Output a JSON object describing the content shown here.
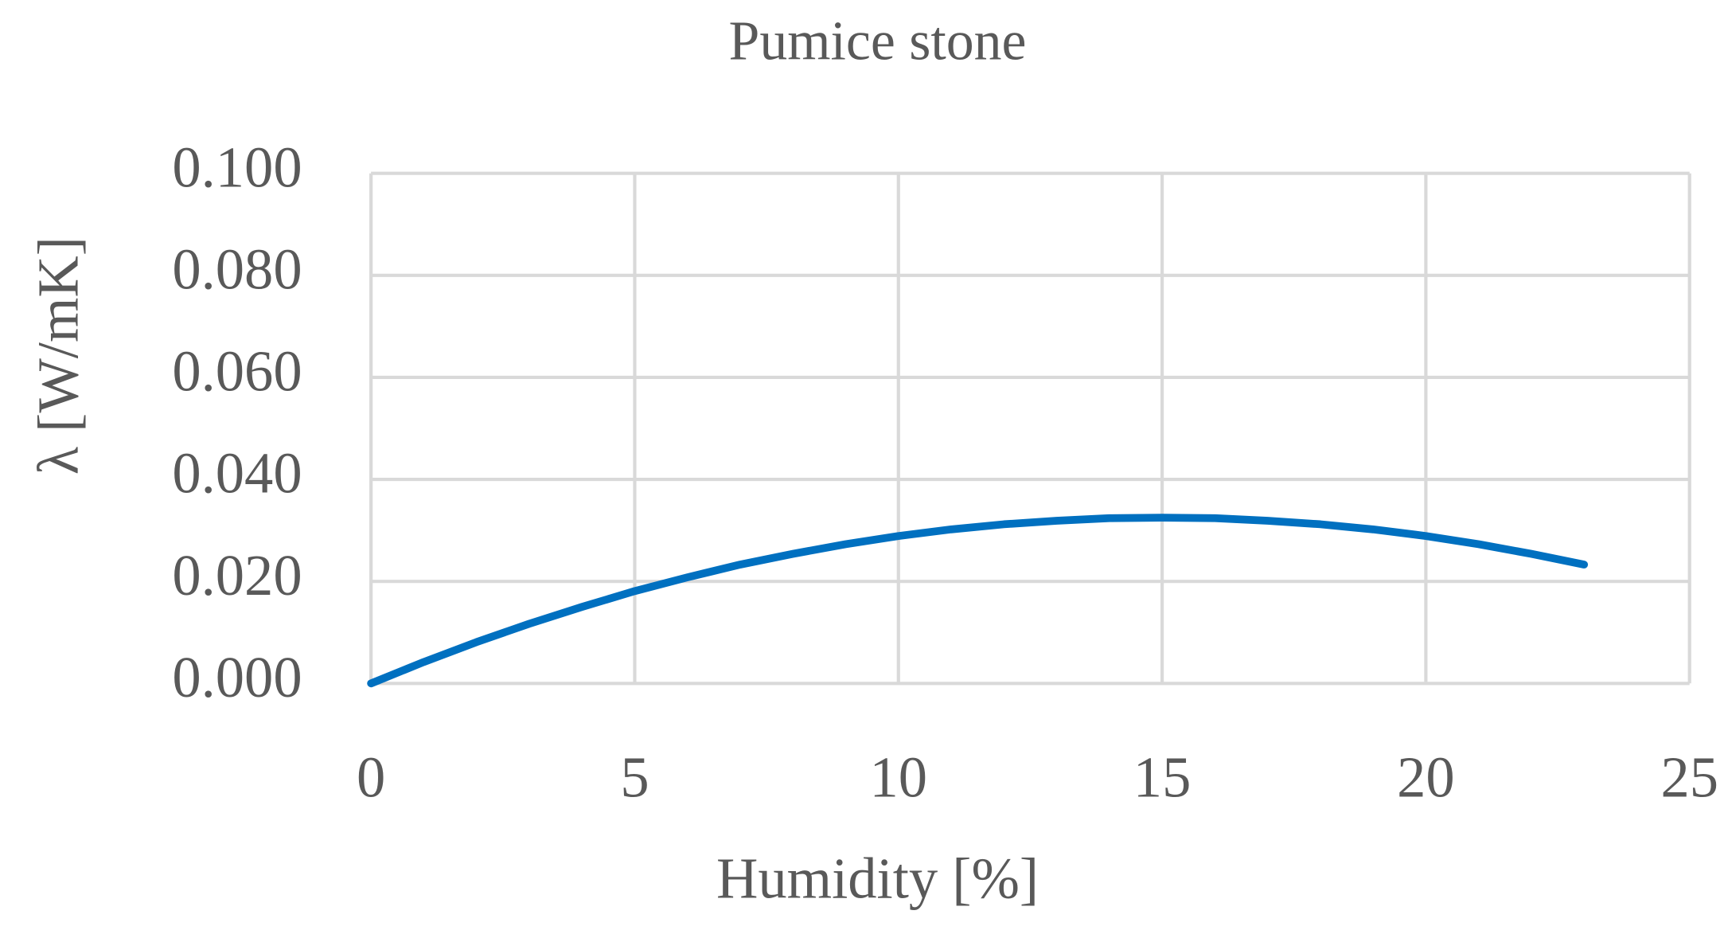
{
  "chart_data": {
    "type": "line",
    "title": "Pumice stone",
    "x_label": "Humidity [%]",
    "y_label": "λ [W/mK]",
    "x": [
      0,
      1,
      2,
      3,
      4,
      5,
      6,
      7,
      8,
      9,
      10,
      11,
      12,
      13,
      14,
      15,
      16,
      17,
      18,
      19,
      20,
      21,
      22,
      23
    ],
    "series": [
      {
        "name": "Pumice stone",
        "color": "#0070c0",
        "values": [
          0,
          0.0042,
          0.0081,
          0.0117,
          0.015,
          0.0181,
          0.0208,
          0.0233,
          0.0254,
          0.0273,
          0.0289,
          0.0302,
          0.0312,
          0.0319,
          0.0324,
          0.0325,
          0.0324,
          0.0319,
          0.0312,
          0.0302,
          0.0289,
          0.0273,
          0.0254,
          0.0233
        ]
      }
    ],
    "xlim": [
      0,
      25
    ],
    "xticks": [
      0,
      5,
      10,
      15,
      20,
      25
    ],
    "ylim": [
      0,
      0.1
    ],
    "yticks": [
      {
        "value": 0,
        "label": "0.000"
      },
      {
        "value": 0.02,
        "label": "0.020"
      },
      {
        "value": 0.04,
        "label": "0.040"
      },
      {
        "value": 0.06,
        "label": "0.060"
      },
      {
        "value": 0.08,
        "label": "0.080"
      },
      {
        "value": 0.1,
        "label": "0.100"
      }
    ],
    "grid": true
  }
}
